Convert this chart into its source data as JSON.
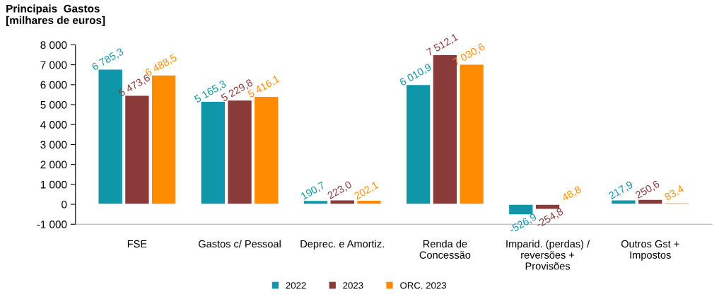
{
  "chart_data": {
    "type": "bar",
    "title": "Principais  Gastos\n[milhares de euros]",
    "categories": [
      "FSE",
      "Gastos c/ Pessoal",
      "Deprec. e Amortiz.",
      "Renda de\nConcessão",
      "Imparid. (perdas) /\nreversões +\nProvisões",
      "Outros Gst +\nImpostos"
    ],
    "series": [
      {
        "name": "2022",
        "color": "#0f96a8",
        "values": [
          6785.3,
          5165.3,
          190.7,
          6010.9,
          -526.9,
          217.9
        ],
        "value_labels": [
          "6 785,3",
          "5 165,3",
          "190,7",
          "6 010,9",
          "-526,9",
          "217,9"
        ]
      },
      {
        "name": "2023",
        "color": "#8b3a3a",
        "values": [
          5473.6,
          5229.8,
          223.0,
          7512.1,
          -254.8,
          250.6
        ],
        "value_labels": [
          "5 473,6",
          "5 229,8",
          "223,0",
          "7 512,1",
          "-254,8",
          "250,6"
        ]
      },
      {
        "name": "ORC. 2023",
        "color": "#ff8c00",
        "values": [
          6488.5,
          5416.1,
          202.1,
          7030.6,
          48.8,
          83.4
        ],
        "value_labels": [
          "6 488,5",
          "5 416,1",
          "202,1",
          "7 030,6",
          "48,8",
          "83,4"
        ]
      }
    ],
    "ylim": [
      -1000,
      8000
    ],
    "yticks": [
      {
        "value": -1000,
        "label": "-1 000"
      },
      {
        "value": 0,
        "label": "0"
      },
      {
        "value": 1000,
        "label": "1 000"
      },
      {
        "value": 2000,
        "label": "2 000"
      },
      {
        "value": 3000,
        "label": "3 000"
      },
      {
        "value": 4000,
        "label": "4 000"
      },
      {
        "value": 5000,
        "label": "5 000"
      },
      {
        "value": 6000,
        "label": "6 000"
      },
      {
        "value": 7000,
        "label": "7 000"
      },
      {
        "value": 8000,
        "label": "8 000"
      }
    ],
    "grid": false,
    "legend": "bottom"
  }
}
